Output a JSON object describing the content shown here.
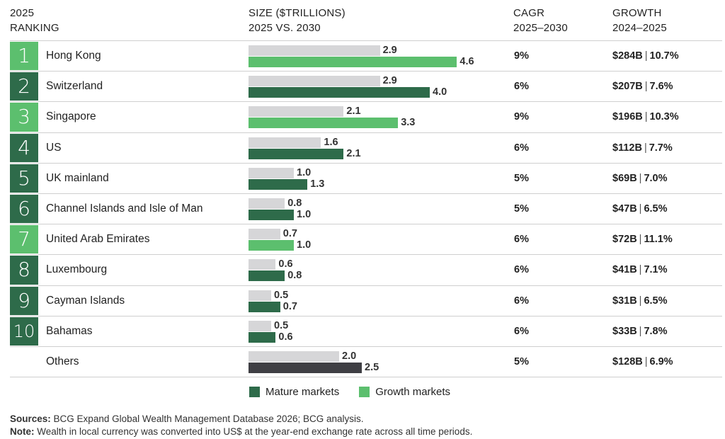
{
  "headers": {
    "ranking_line1": "2025",
    "ranking_line2": "RANKING",
    "size_line1": "SIZE ($TRILLIONS)",
    "size_line2": "2025 VS. 2030",
    "cagr_line1": "CAGR",
    "cagr_line2": "2025–2030",
    "growth_line1": "GROWTH",
    "growth_line2": "2024–2025"
  },
  "colors": {
    "mature": "#2e6b4a",
    "growth": "#5cbf6e",
    "bar_2025": "#d6d6d8",
    "others_2030": "#3f3f44"
  },
  "legend": {
    "mature_label": "Mature markets",
    "growth_label": "Growth markets"
  },
  "chart_data": {
    "type": "bar",
    "title": "",
    "xlim": [
      0,
      5
    ],
    "categories": [
      "Hong Kong",
      "Switzerland",
      "Singapore",
      "US",
      "UK mainland",
      "Channel Islands and Isle of Man",
      "United Arab Emirates",
      "Luxembourg",
      "Cayman Islands",
      "Bahamas",
      "Others"
    ],
    "series": [
      {
        "values": [
          2.9,
          2.9,
          2.1,
          1.6,
          1.0,
          0.8,
          0.7,
          0.6,
          0.5,
          0.5,
          2.0
        ]
      },
      {
        "values": [
          4.6,
          4.0,
          3.3,
          2.1,
          1.3,
          1.0,
          1.0,
          0.8,
          0.7,
          0.6,
          2.5
        ]
      }
    ],
    "rows": [
      {
        "rank": "1",
        "country": "Hong Kong",
        "market": "growth",
        "v2025": "2.9",
        "v2030": "4.6",
        "cagr": "9%",
        "growth_abs": "$284B",
        "growth_pct": "10.7%"
      },
      {
        "rank": "2",
        "country": "Switzerland",
        "market": "mature",
        "v2025": "2.9",
        "v2030": "4.0",
        "cagr": "6%",
        "growth_abs": "$207B",
        "growth_pct": "7.6%"
      },
      {
        "rank": "3",
        "country": "Singapore",
        "market": "growth",
        "v2025": "2.1",
        "v2030": "3.3",
        "cagr": "9%",
        "growth_abs": "$196B",
        "growth_pct": "10.3%"
      },
      {
        "rank": "4",
        "country": "US",
        "market": "mature",
        "v2025": "1.6",
        "v2030": "2.1",
        "cagr": "6%",
        "growth_abs": "$112B",
        "growth_pct": "7.7%"
      },
      {
        "rank": "5",
        "country": "UK mainland",
        "market": "mature",
        "v2025": "1.0",
        "v2030": "1.3",
        "cagr": "5%",
        "growth_abs": "$69B",
        "growth_pct": "7.0%"
      },
      {
        "rank": "6",
        "country": "Channel Islands and Isle of Man",
        "market": "mature",
        "v2025": "0.8",
        "v2030": "1.0",
        "cagr": "5%",
        "growth_abs": "$47B",
        "growth_pct": "6.5%"
      },
      {
        "rank": "7",
        "country": "United Arab Emirates",
        "market": "growth",
        "v2025": "0.7",
        "v2030": "1.0",
        "cagr": "6%",
        "growth_abs": "$72B",
        "growth_pct": "11.1%"
      },
      {
        "rank": "8",
        "country": "Luxembourg",
        "market": "mature",
        "v2025": "0.6",
        "v2030": "0.8",
        "cagr": "6%",
        "growth_abs": "$41B",
        "growth_pct": "7.1%"
      },
      {
        "rank": "9",
        "country": "Cayman Islands",
        "market": "mature",
        "v2025": "0.5",
        "v2030": "0.7",
        "cagr": "6%",
        "growth_abs": "$31B",
        "growth_pct": "6.5%"
      },
      {
        "rank": "10",
        "country": "Bahamas",
        "market": "mature",
        "v2025": "0.5",
        "v2030": "0.6",
        "cagr": "6%",
        "growth_abs": "$33B",
        "growth_pct": "7.8%"
      },
      {
        "rank": "",
        "country": "Others",
        "market": "others",
        "v2025": "2.0",
        "v2030": "2.5",
        "cagr": "5%",
        "growth_abs": "$128B",
        "growth_pct": "6.9%"
      }
    ]
  },
  "footnotes": {
    "sources_label": "Sources:",
    "sources_text": "BCG Expand Global Wealth Management Database 2026; BCG analysis.",
    "note_label": "Note:",
    "note_text": "Wealth in local currency was converted into US$ at the year-end exchange rate across all time periods."
  }
}
